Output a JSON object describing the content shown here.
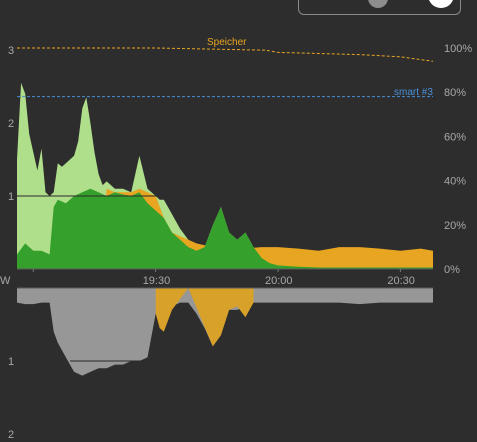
{
  "colors": {
    "background": "#2d2d2d",
    "solar": "#b0df8c",
    "direct_use": "#35a02c",
    "battery": "#e8a521",
    "grid": "#979797",
    "grid_battery": "#d8a12a",
    "speicher": "#e8a521",
    "smart": "#4a8fd8",
    "axis_text": "#a8a8a8"
  },
  "annotations": {
    "speicher": "Speicher",
    "smart": "smart #3"
  },
  "chart_data": [
    {
      "type": "area",
      "name": "top",
      "ylim": [
        0,
        3
      ],
      "y2lim": [
        0,
        100
      ],
      "yticks": [
        1,
        2,
        3
      ],
      "y2ticks": [
        "0%",
        "20%",
        "40%",
        "60%",
        "80%",
        "100%"
      ],
      "xticks": [
        "19:30",
        "20:00",
        "20:30"
      ],
      "x_range": [
        "18:56",
        "20:38"
      ],
      "series": [
        {
          "key": "solar",
          "x": [
            "18:56",
            "18:57",
            "18:58",
            "18:59",
            "19:00",
            "19:01",
            "19:02",
            "19:03",
            "19:04",
            "19:05",
            "19:06",
            "19:07",
            "19:08",
            "19:09",
            "19:10",
            "19:11",
            "19:12",
            "19:13",
            "19:14",
            "19:15",
            "19:16",
            "19:17",
            "19:18",
            "19:20",
            "19:22",
            "19:24",
            "19:26",
            "19:28",
            "19:30",
            "19:31",
            "19:32",
            "19:33",
            "19:34",
            "19:36",
            "19:38",
            "19:40",
            "19:42",
            "19:44",
            "19:46",
            "19:48",
            "19:50",
            "19:52",
            "19:54",
            "19:56",
            "19:58",
            "20:00",
            "20:05",
            "20:10",
            "20:20",
            "20:30",
            "20:38"
          ],
          "values": [
            1.5,
            2.55,
            2.4,
            1.85,
            1.6,
            1.35,
            1.65,
            1.05,
            1.0,
            1.05,
            1.45,
            1.4,
            1.45,
            1.5,
            1.55,
            1.75,
            2.2,
            2.35,
            2.0,
            1.6,
            1.3,
            1.15,
            1.2,
            1.1,
            1.1,
            1.05,
            1.55,
            1.1,
            1.0,
            0.95,
            0.95,
            0.85,
            0.75,
            0.55,
            0.4,
            0.3,
            0.3,
            0.6,
            0.85,
            0.5,
            0.4,
            0.5,
            0.3,
            0.15,
            0.08,
            0.05,
            0.03,
            0.02,
            0.02,
            0.02,
            0.02
          ]
        },
        {
          "key": "direct_use",
          "x": [
            "18:56",
            "18:58",
            "19:00",
            "19:02",
            "19:04",
            "19:05",
            "19:06",
            "19:08",
            "19:10",
            "19:12",
            "19:14",
            "19:16",
            "19:18",
            "19:20",
            "19:22",
            "19:24",
            "19:26",
            "19:28",
            "19:30",
            "19:32",
            "19:34",
            "19:36",
            "19:38",
            "19:40",
            "19:42",
            "19:44",
            "19:46",
            "19:48",
            "19:50",
            "19:52",
            "19:54",
            "19:56",
            "19:58",
            "20:00",
            "20:05",
            "20:10",
            "20:20",
            "20:30",
            "20:38"
          ],
          "values": [
            0.2,
            0.35,
            0.25,
            0.25,
            0.2,
            0.85,
            0.95,
            0.9,
            1.0,
            1.05,
            1.1,
            1.05,
            1.0,
            1.05,
            1.02,
            1.0,
            1.05,
            0.9,
            0.8,
            0.7,
            0.5,
            0.4,
            0.3,
            0.25,
            0.3,
            0.6,
            0.85,
            0.5,
            0.4,
            0.5,
            0.3,
            0.15,
            0.08,
            0.05,
            0.03,
            0.02,
            0.02,
            0.02,
            0.02
          ]
        },
        {
          "key": "battery",
          "x": [
            "19:16",
            "19:18",
            "19:20",
            "19:22",
            "19:24",
            "19:26",
            "19:28",
            "19:30",
            "19:32",
            "19:34",
            "19:36",
            "19:38",
            "19:40",
            "19:44",
            "19:48",
            "19:52",
            "19:56",
            "20:00",
            "20:05",
            "20:10",
            "20:15",
            "20:20",
            "20:25",
            "20:30",
            "20:35",
            "20:38"
          ],
          "values": [
            0.0,
            1.1,
            1.05,
            1.05,
            1.05,
            1.1,
            1.05,
            1.0,
            0.7,
            0.5,
            0.45,
            0.4,
            0.35,
            0.3,
            0.32,
            0.28,
            0.3,
            0.3,
            0.28,
            0.25,
            0.3,
            0.3,
            0.28,
            0.25,
            0.28,
            0.25
          ]
        },
        {
          "key": "speicher",
          "unit": "%",
          "x": [
            "18:56",
            "19:30",
            "19:57",
            "20:00",
            "20:20",
            "20:30",
            "20:38"
          ],
          "values": [
            100,
            100,
            99,
            98,
            97,
            96,
            94
          ]
        },
        {
          "key": "smart",
          "unit": "%",
          "x": [
            "18:56",
            "20:38"
          ],
          "values": [
            78,
            78
          ]
        }
      ]
    },
    {
      "type": "area",
      "name": "bottom",
      "ylim": [
        0,
        2
      ],
      "yticks": [
        1,
        2
      ],
      "ylabel_fragment": "W",
      "series": [
        {
          "key": "grid",
          "x": [
            "18:56",
            "18:58",
            "19:00",
            "19:02",
            "19:04",
            "19:05",
            "19:06",
            "19:08",
            "19:10",
            "19:12",
            "19:14",
            "19:16",
            "19:18",
            "19:20",
            "19:22",
            "19:24",
            "19:26",
            "19:28",
            "19:30",
            "19:32",
            "19:34",
            "19:36",
            "19:38",
            "19:40",
            "19:42",
            "19:44",
            "19:46",
            "19:48",
            "19:50",
            "19:52",
            "19:54",
            "19:56",
            "19:58",
            "20:00",
            "20:05",
            "20:10",
            "20:15",
            "20:20",
            "20:25",
            "20:30",
            "20:38"
          ],
          "values": [
            0.2,
            0.22,
            0.22,
            0.2,
            0.2,
            0.6,
            0.75,
            0.95,
            1.15,
            1.2,
            1.15,
            1.1,
            1.1,
            1.05,
            1.05,
            1.0,
            1.0,
            0.95,
            0.35,
            0.3,
            0.25,
            0.2,
            0.2,
            0.35,
            0.55,
            0.8,
            0.6,
            0.3,
            0.3,
            0.25,
            0.2,
            0.2,
            0.2,
            0.2,
            0.2,
            0.2,
            0.2,
            0.22,
            0.2,
            0.2,
            0.2
          ]
        },
        {
          "key": "grid_battery",
          "x": [
            "19:30",
            "19:31",
            "19:32",
            "19:34",
            "19:38",
            "19:41",
            "19:44",
            "19:46",
            "19:48",
            "19:50",
            "19:52",
            "19:54"
          ],
          "values": [
            0.35,
            0.55,
            0.6,
            0.3,
            0.0,
            0.4,
            0.8,
            0.65,
            0.3,
            0.25,
            0.4,
            0.2
          ]
        }
      ]
    }
  ]
}
